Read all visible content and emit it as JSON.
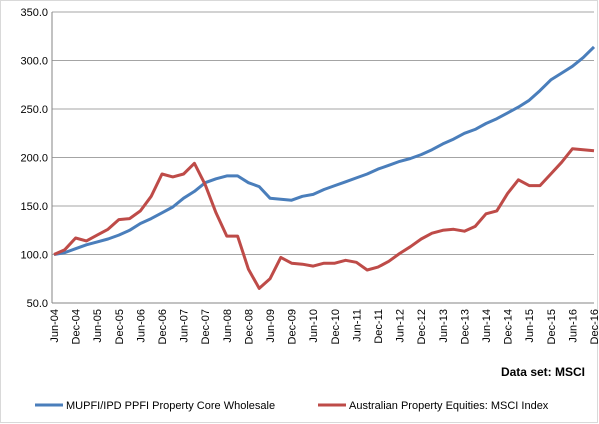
{
  "chart_data": {
    "type": "line",
    "categories": [
      "Jun-04",
      null,
      "Dec-04",
      null,
      "Jun-05",
      null,
      "Dec-05",
      null,
      "Jun-06",
      null,
      "Dec-06",
      null,
      "Jun-07",
      null,
      "Dec-07",
      null,
      "Jun-08",
      null,
      "Dec-08",
      null,
      "Jun-09",
      null,
      "Dec-09",
      null,
      "Jun-10",
      null,
      "Dec-10",
      null,
      "Jun-11",
      null,
      "Dec-11",
      null,
      "Jun-12",
      null,
      "Dec-12",
      null,
      "Jun-13",
      null,
      "Dec-13",
      null,
      "Jun-14",
      null,
      "Dec-14",
      null,
      "Jun-15",
      null,
      "Dec-15",
      null,
      "Jun-16",
      null,
      "Dec-16"
    ],
    "series": [
      {
        "name": "MUPFI/IPD PPFI Property Core Wholesale",
        "color": "#4a7ebb",
        "values": [
          100,
          102,
          106,
          110,
          113,
          116,
          120,
          125,
          132,
          137,
          143,
          149,
          158,
          165,
          174,
          178,
          181,
          181,
          174,
          170,
          158,
          157,
          156,
          160,
          162,
          167,
          171,
          175,
          179,
          183,
          188,
          192,
          196,
          199,
          203,
          208,
          214,
          219,
          225,
          229,
          235,
          240,
          246,
          252,
          259,
          269,
          280,
          287,
          294,
          303,
          314
        ]
      },
      {
        "name": "Australian Property Equities: MSCI Index",
        "color": "#be4b48",
        "values": [
          100,
          105,
          117,
          114,
          120,
          126,
          136,
          137,
          145,
          160,
          183,
          180,
          183,
          194,
          172,
          143,
          119,
          119,
          85,
          65,
          75,
          97,
          91,
          90,
          88,
          91,
          91,
          94,
          92,
          84,
          87,
          93,
          101,
          108,
          116,
          122,
          125,
          126,
          124,
          129,
          142,
          145,
          163,
          177,
          171,
          171,
          183,
          195,
          209,
          208,
          207
        ]
      }
    ],
    "ylim": [
      50,
      350
    ],
    "yticks": [
      {
        "value": 50,
        "label": "50.0"
      },
      {
        "value": 100,
        "label": "100.0"
      },
      {
        "value": 150,
        "label": "150.0"
      },
      {
        "value": 200,
        "label": "200.0"
      },
      {
        "value": 250,
        "label": "250.0"
      },
      {
        "value": 300,
        "label": "300.0"
      },
      {
        "value": 350,
        "label": "350.0"
      }
    ],
    "grid": true,
    "annotation": "Data set: MSCI",
    "legend": "bottom"
  }
}
